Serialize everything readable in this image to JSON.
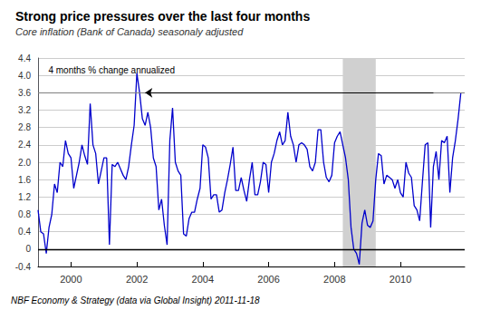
{
  "chart_data": {
    "type": "line",
    "title": "Strong price pressures over the last four months",
    "subtitle": "Core inflation (Bank of Canada) seasonaly adjusted",
    "footer": "NBF Economy & Strategy (data via Global Insight) 2011-11-18",
    "color": "#0000CC",
    "grid": "y",
    "xlim": [
      1999.0,
      2011.95
    ],
    "xticks": [
      2000,
      2002,
      2004,
      2006,
      2008,
      2010
    ],
    "ylim": [
      -0.4,
      4.4
    ],
    "yticks": [
      -0.4,
      0,
      0.4,
      0.8,
      1.2,
      1.6,
      {
        "value": 2.0,
        "label": "2.0"
      },
      2.4,
      2.8,
      3.2,
      3.6,
      {
        "value": 4.0,
        "label": "4.0"
      },
      4.4
    ],
    "shaded": {
      "start": 2008.25,
      "end": 2009.25,
      "color": "#d0d0d0"
    },
    "reference_line": {
      "value": 3.6,
      "color": "gray"
    },
    "zero_line": {
      "value": 0,
      "color": "black"
    },
    "arrow": {
      "from": [
        2011.0,
        3.6
      ],
      "to": [
        2002.25,
        3.6
      ],
      "color": "black"
    },
    "annotations": [
      {
        "text": "4 months % change annualized",
        "x": 1999.3,
        "y": 4.22
      }
    ],
    "x": [
      1999.0,
      1999.083,
      1999.167,
      1999.25,
      1999.333,
      1999.417,
      1999.5,
      1999.583,
      1999.667,
      1999.75,
      1999.833,
      1999.917,
      2000.0,
      2000.083,
      2000.167,
      2000.25,
      2000.333,
      2000.417,
      2000.5,
      2000.583,
      2000.667,
      2000.75,
      2000.833,
      2000.917,
      2001.0,
      2001.083,
      2001.167,
      2001.25,
      2001.333,
      2001.417,
      2001.5,
      2001.583,
      2001.667,
      2001.75,
      2001.833,
      2001.917,
      2002.0,
      2002.083,
      2002.167,
      2002.25,
      2002.333,
      2002.417,
      2002.5,
      2002.583,
      2002.667,
      2002.75,
      2002.833,
      2002.917,
      2003.0,
      2003.083,
      2003.167,
      2003.25,
      2003.333,
      2003.417,
      2003.5,
      2003.583,
      2003.667,
      2003.75,
      2003.833,
      2003.917,
      2004.0,
      2004.083,
      2004.167,
      2004.25,
      2004.333,
      2004.417,
      2004.5,
      2004.583,
      2004.667,
      2004.75,
      2004.833,
      2004.917,
      2005.0,
      2005.083,
      2005.167,
      2005.25,
      2005.333,
      2005.417,
      2005.5,
      2005.583,
      2005.667,
      2005.75,
      2005.833,
      2005.917,
      2006.0,
      2006.083,
      2006.167,
      2006.25,
      2006.333,
      2006.417,
      2006.5,
      2006.583,
      2006.667,
      2006.75,
      2006.833,
      2006.917,
      2007.0,
      2007.083,
      2007.167,
      2007.25,
      2007.333,
      2007.417,
      2007.5,
      2007.583,
      2007.667,
      2007.75,
      2007.833,
      2007.917,
      2008.0,
      2008.083,
      2008.167,
      2008.25,
      2008.333,
      2008.417,
      2008.5,
      2008.583,
      2008.667,
      2008.75,
      2008.833,
      2008.917,
      2009.0,
      2009.083,
      2009.167,
      2009.25,
      2009.333,
      2009.417,
      2009.5,
      2009.583,
      2009.667,
      2009.75,
      2009.833,
      2009.917,
      2010.0,
      2010.083,
      2010.167,
      2010.25,
      2010.333,
      2010.417,
      2010.5,
      2010.583,
      2010.667,
      2010.75,
      2010.833,
      2010.917,
      2011.0,
      2011.083,
      2011.167,
      2011.25,
      2011.333,
      2011.417,
      2011.5,
      2011.583,
      2011.667,
      2011.75,
      2011.833
    ],
    "values": [
      0.9,
      0.4,
      0.35,
      -0.1,
      0.5,
      0.8,
      1.5,
      1.3,
      2.0,
      1.9,
      2.5,
      2.2,
      2.1,
      1.4,
      1.7,
      2.0,
      2.4,
      2.15,
      1.95,
      3.35,
      2.4,
      2.2,
      1.5,
      1.8,
      2.1,
      2.1,
      0.1,
      1.95,
      1.9,
      2.0,
      1.85,
      1.7,
      1.6,
      1.9,
      2.4,
      2.85,
      4.05,
      3.6,
      3.0,
      2.85,
      3.15,
      2.8,
      2.1,
      1.9,
      0.9,
      1.15,
      0.55,
      0.1,
      2.5,
      3.25,
      2.0,
      1.8,
      1.7,
      0.35,
      0.3,
      0.7,
      0.85,
      0.85,
      1.15,
      1.4,
      2.4,
      2.35,
      2.1,
      1.15,
      1.25,
      1.25,
      0.85,
      0.9,
      1.3,
      1.6,
      1.95,
      2.35,
      1.35,
      1.35,
      1.65,
      1.35,
      1.1,
      1.6,
      2.0,
      1.25,
      1.25,
      1.55,
      2.0,
      1.95,
      1.3,
      2.0,
      2.2,
      2.5,
      2.7,
      2.4,
      2.5,
      3.15,
      2.6,
      2.4,
      2.0,
      2.4,
      2.45,
      2.4,
      2.3,
      1.9,
      1.8,
      2.0,
      2.75,
      2.75,
      2.0,
      1.65,
      1.55,
      1.7,
      2.45,
      2.6,
      2.7,
      2.4,
      2.1,
      1.6,
      0.5,
      0.0,
      -0.1,
      -0.35,
      0.6,
      0.9,
      0.55,
      0.5,
      0.65,
      1.6,
      2.2,
      2.15,
      1.5,
      1.7,
      1.65,
      1.6,
      1.4,
      1.6,
      1.3,
      1.2,
      2.0,
      1.75,
      1.65,
      1.0,
      0.9,
      0.65,
      1.55,
      2.4,
      2.45,
      0.5,
      1.9,
      2.25,
      1.6,
      2.5,
      2.45,
      2.6,
      1.3,
      2.1,
      2.5,
      3.0,
      3.6
    ]
  }
}
